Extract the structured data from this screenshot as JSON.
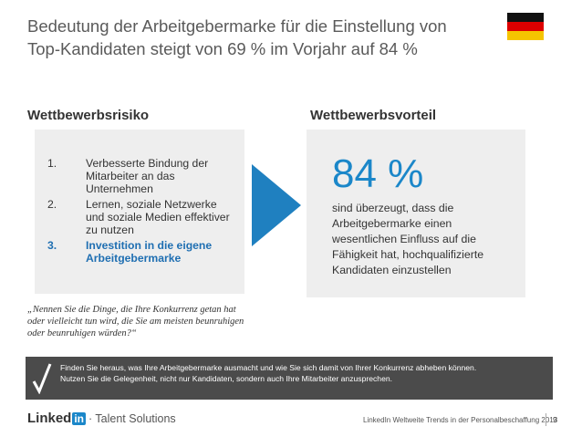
{
  "header": {
    "title_lines": [
      "Bedeutung der Arbeitgebermarke für die Einstellung von",
      "Top-Kandidaten steigt von 69 % im Vorjahr auf 84 %"
    ]
  },
  "left": {
    "heading": "Wettbewerbsrisiko",
    "items": [
      {
        "number": "1.",
        "text": "Verbesserte Bindung der Mitarbeiter an das Unternehmen"
      },
      {
        "number": "2.",
        "text": "Lernen, soziale Netzwerke und soziale Medien effektiver zu nutzen"
      },
      {
        "number": "3.",
        "text": "Investition in die eigene Arbeitgebermarke"
      }
    ],
    "quote": "„Nennen Sie die Dinge, die Ihre Konkurrenz getan hat oder vielleicht tun wird, die Sie am meisten beunruhigen oder beunruhigen würden?“"
  },
  "right": {
    "heading": "Wettbewerbsvorteil",
    "stat": "84 %",
    "description": "sind überzeugt, dass die Arbeitgebermarke einen wesentlichen Einfluss auf die Fähigkeit hat, hochqualifizierte Kandidaten einzustellen"
  },
  "bottom": {
    "text": "Finden Sie heraus, was Ihre Arbeitgebermarke ausmacht und wie Sie sich damit von Ihrer Konkurrenz abheben können. Nutzen Sie die Gelegenheit, nicht nur Kandidaten, sondern auch Ihre Mitarbeiter anzusprechen."
  },
  "footer": {
    "logo_word": "Linked",
    "logo_badge": "in",
    "product": "· Talent Solutions",
    "source": "LinkedIn Weltweite Trends in der Personalbeschaffung 2013",
    "page": "9"
  }
}
